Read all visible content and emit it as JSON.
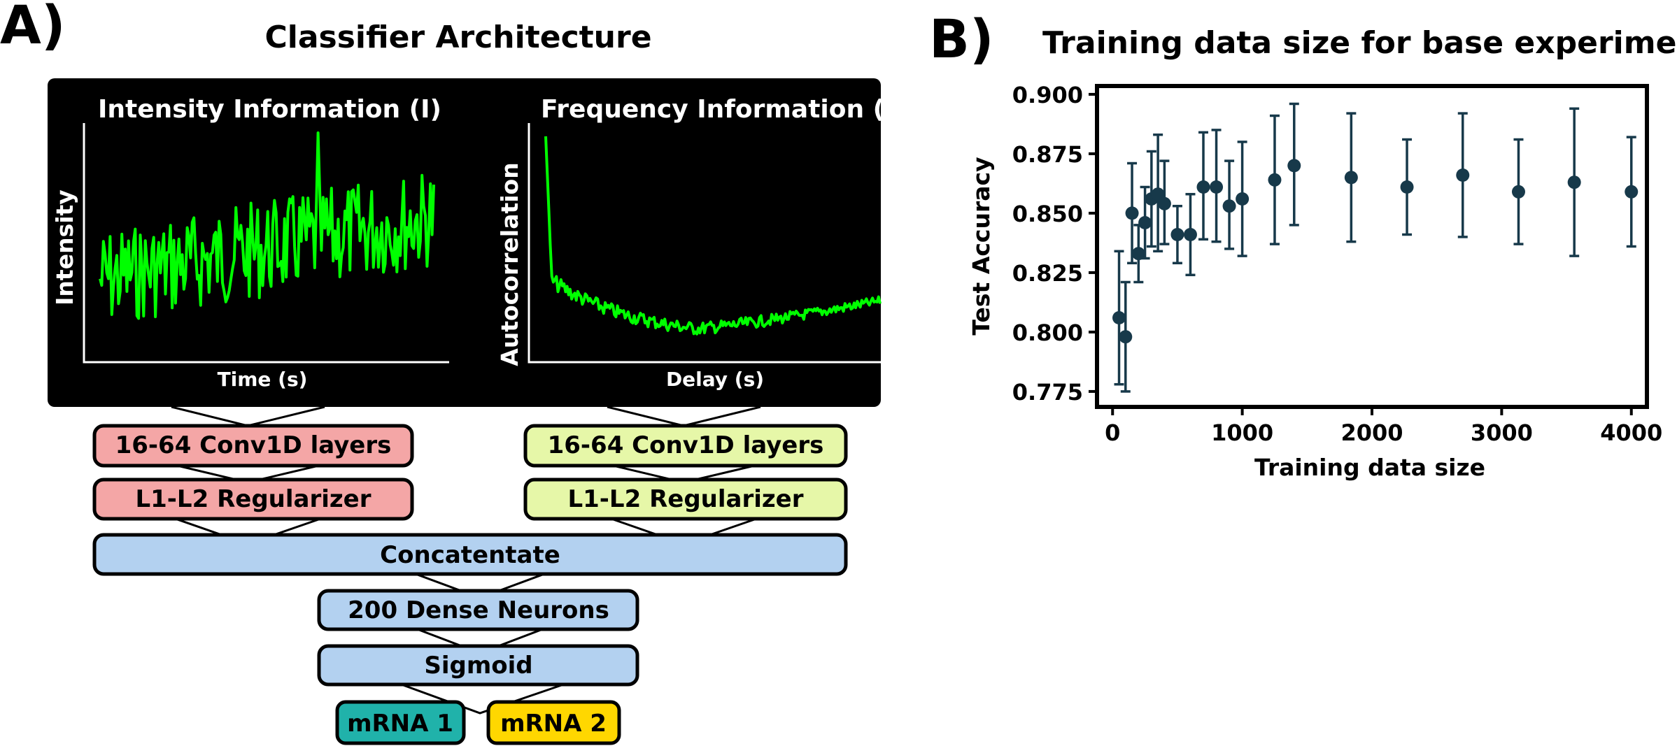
{
  "panel_a": {
    "label": "A)",
    "title": "Classifier Architecture",
    "intensity_panel": {
      "title": "Intensity Information (I)",
      "ylabel": "Intensity",
      "xlabel": "Time (s)"
    },
    "frequency_panel": {
      "title": "Frequency Information (F)",
      "ylabel": "Autocorrelation",
      "xlabel": "Delay (s)"
    },
    "boxes": {
      "conv_left": "16-64 Conv1D layers",
      "conv_right": "16-64 Conv1D layers",
      "reg_left": "L1-L2 Regularizer",
      "reg_right": "L1-L2 Regularizer",
      "concat": "Concatentate",
      "dense": "200 Dense Neurons",
      "sigmoid": "Sigmoid",
      "mrna1": "mRNA 1",
      "mrna2": "mRNA 2"
    },
    "colors": {
      "signal": "#00ff00",
      "left_branch": "#f4a6a6",
      "right_branch": "#e6f7a8",
      "shared": "#b3d1f0",
      "mrna1": "#20b2aa",
      "mrna2": "#ffd700"
    }
  },
  "panel_b": {
    "label": "B)",
    "chart_data": {
      "type": "scatter",
      "title": "Training data size for base experiment",
      "xlabel": "Training data size",
      "ylabel": "Test Accuracy",
      "xlim": [
        -120,
        4120
      ],
      "ylim": [
        0.7685,
        0.9035
      ],
      "xticks": [
        0,
        1000,
        2000,
        3000,
        4000
      ],
      "yticks": [
        0.775,
        0.8,
        0.825,
        0.85,
        0.875,
        0.9
      ],
      "xtick_labels": [
        "0",
        "1000",
        "2000",
        "3000",
        "4000"
      ],
      "ytick_labels": [
        "0.775",
        "0.800",
        "0.825",
        "0.850",
        "0.875",
        "0.900"
      ],
      "color": "#17394a",
      "grid": false,
      "points": [
        {
          "x": 50,
          "y": 0.806,
          "lo": 0.778,
          "hi": 0.834
        },
        {
          "x": 100,
          "y": 0.798,
          "lo": 0.775,
          "hi": 0.821
        },
        {
          "x": 150,
          "y": 0.85,
          "lo": 0.829,
          "hi": 0.871
        },
        {
          "x": 200,
          "y": 0.833,
          "lo": 0.821,
          "hi": 0.845
        },
        {
          "x": 250,
          "y": 0.846,
          "lo": 0.831,
          "hi": 0.861
        },
        {
          "x": 300,
          "y": 0.856,
          "lo": 0.836,
          "hi": 0.876
        },
        {
          "x": 350,
          "y": 0.858,
          "lo": 0.834,
          "hi": 0.883
        },
        {
          "x": 400,
          "y": 0.854,
          "lo": 0.837,
          "hi": 0.872
        },
        {
          "x": 500,
          "y": 0.841,
          "lo": 0.829,
          "hi": 0.853
        },
        {
          "x": 600,
          "y": 0.841,
          "lo": 0.824,
          "hi": 0.858
        },
        {
          "x": 700,
          "y": 0.861,
          "lo": 0.839,
          "hi": 0.884
        },
        {
          "x": 800,
          "y": 0.861,
          "lo": 0.838,
          "hi": 0.885
        },
        {
          "x": 900,
          "y": 0.853,
          "lo": 0.835,
          "hi": 0.872
        },
        {
          "x": 1000,
          "y": 0.856,
          "lo": 0.832,
          "hi": 0.88
        },
        {
          "x": 1250,
          "y": 0.864,
          "lo": 0.837,
          "hi": 0.891
        },
        {
          "x": 1400,
          "y": 0.87,
          "lo": 0.845,
          "hi": 0.896
        },
        {
          "x": 1840,
          "y": 0.865,
          "lo": 0.838,
          "hi": 0.892
        },
        {
          "x": 2270,
          "y": 0.861,
          "lo": 0.841,
          "hi": 0.881
        },
        {
          "x": 2700,
          "y": 0.866,
          "lo": 0.84,
          "hi": 0.892
        },
        {
          "x": 3130,
          "y": 0.859,
          "lo": 0.837,
          "hi": 0.881
        },
        {
          "x": 3560,
          "y": 0.863,
          "lo": 0.832,
          "hi": 0.894
        },
        {
          "x": 4000,
          "y": 0.859,
          "lo": 0.836,
          "hi": 0.882
        }
      ]
    }
  }
}
